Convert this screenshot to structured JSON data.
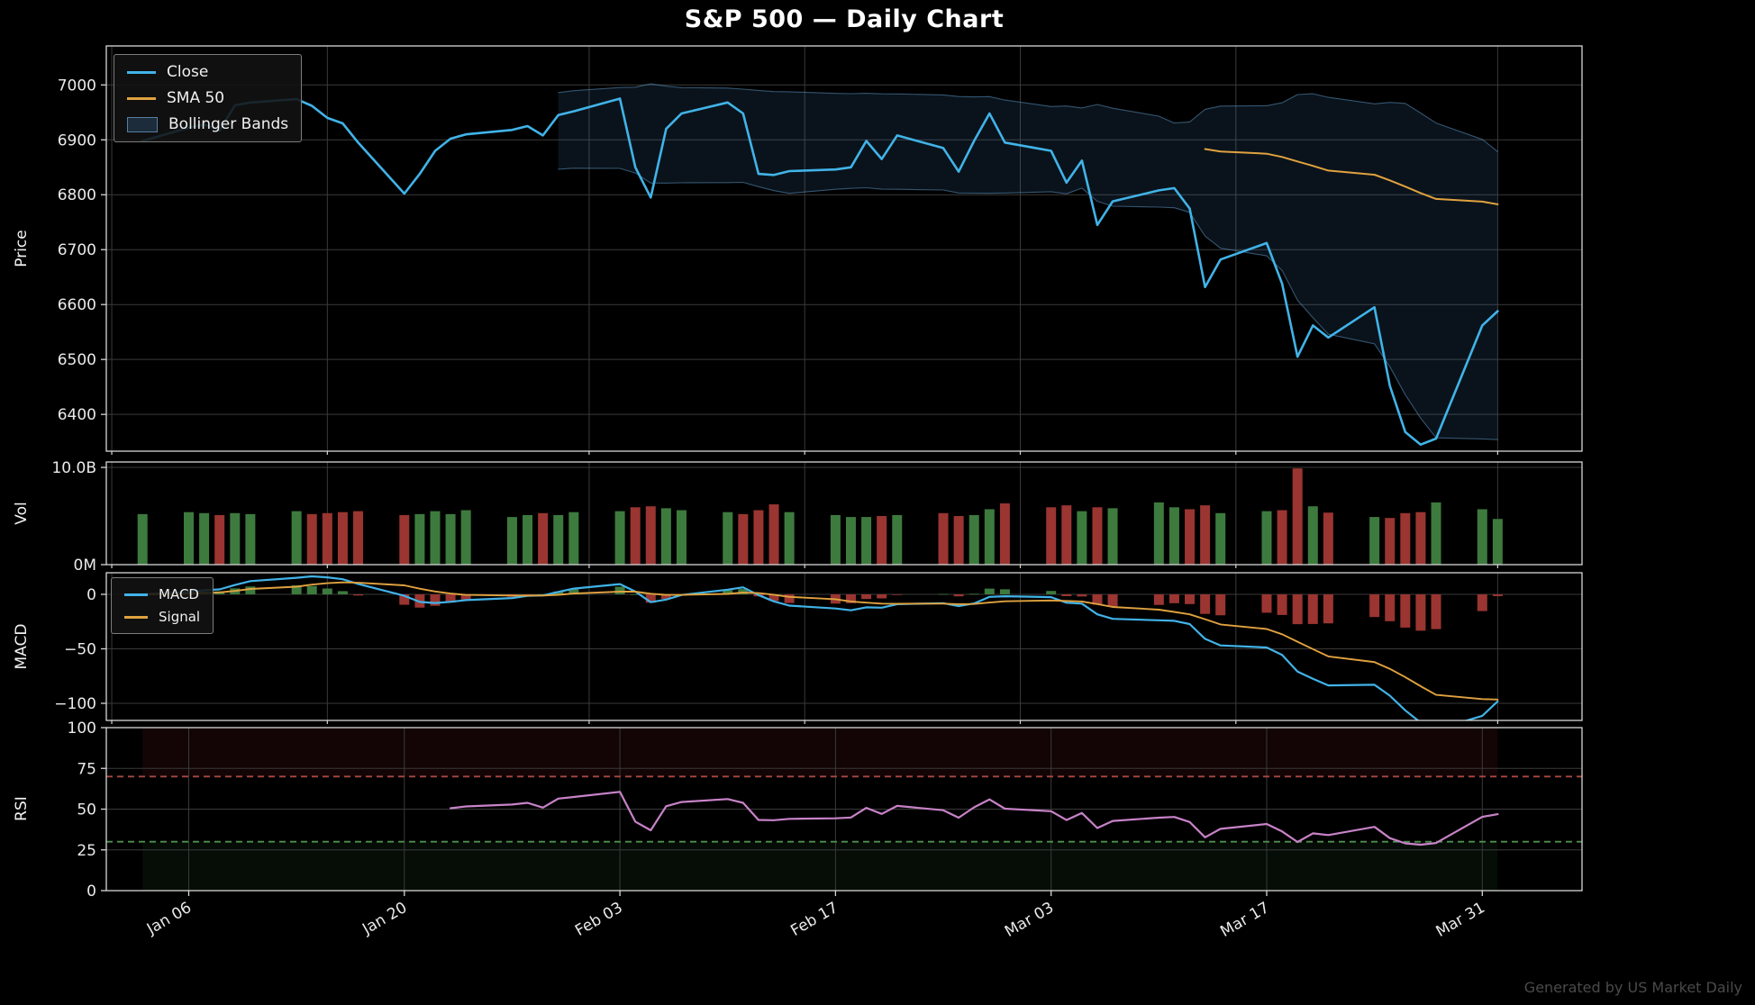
{
  "title": "S&P 500 — Daily Chart",
  "watermark": "Generated by US Market Daily",
  "price_legend": {
    "close": "Close",
    "sma": "SMA 50",
    "bb": "Bollinger Bands"
  },
  "macd_legend": {
    "macd": "MACD",
    "signal": "Signal"
  },
  "axis_labels": {
    "price": "Price",
    "volume": "Vol",
    "macd": "MACD",
    "rsi": "RSI"
  },
  "colors": {
    "background": "#000000",
    "close_line": "#41b3e8",
    "sma_line": "#e0a23f",
    "bb_fill": "rgba(70,130,180,0.15)",
    "bb_edge": "rgba(100,160,210,0.5)",
    "vol_up": "#3d7a3e",
    "vol_down": "#9a3531",
    "macd_line": "#41b3e8",
    "signal_line": "#e0a23f",
    "hist_up": "#3d7a3e",
    "hist_down": "#9a3531",
    "rsi_line": "#c883c8",
    "rsi_overbought_line": "#a84743",
    "rsi_oversold_line": "#4f8f4f",
    "overbought_fill": "rgba(150,40,40,0.13)",
    "oversold_fill": "rgba(50,130,60,0.10)",
    "grid": "#3a3a3a",
    "spine": "#d6d6d6",
    "tick_text": "#eaeaea"
  },
  "chart_data": {
    "type": "line",
    "title": "S&P 500 — Daily Chart",
    "panels": [
      "Price",
      "Vol",
      "MACD",
      "RSI"
    ],
    "legend_position": "upper left",
    "grid": true,
    "dates": [
      "2025-01-03",
      "2025-01-06",
      "2025-01-07",
      "2025-01-08",
      "2025-01-09",
      "2025-01-10",
      "2025-01-13",
      "2025-01-14",
      "2025-01-15",
      "2025-01-16",
      "2025-01-17",
      "2025-01-20",
      "2025-01-21",
      "2025-01-22",
      "2025-01-23",
      "2025-01-24",
      "2025-01-27",
      "2025-01-28",
      "2025-01-29",
      "2025-01-30",
      "2025-01-31",
      "2025-02-03",
      "2025-02-04",
      "2025-02-05",
      "2025-02-06",
      "2025-02-07",
      "2025-02-10",
      "2025-02-11",
      "2025-02-12",
      "2025-02-13",
      "2025-02-14",
      "2025-02-17",
      "2025-02-18",
      "2025-02-19",
      "2025-02-20",
      "2025-02-21",
      "2025-02-24",
      "2025-02-25",
      "2025-02-26",
      "2025-02-27",
      "2025-02-28",
      "2025-03-03",
      "2025-03-04",
      "2025-03-05",
      "2025-03-06",
      "2025-03-07",
      "2025-03-10",
      "2025-03-11",
      "2025-03-12",
      "2025-03-13",
      "2025-03-14",
      "2025-03-17",
      "2025-03-18",
      "2025-03-19",
      "2025-03-20",
      "2025-03-21",
      "2025-03-24",
      "2025-03-25",
      "2025-03-26",
      "2025-03-27",
      "2025-03-28",
      "2025-03-31",
      "2025-04-01"
    ],
    "close": [
      6898,
      6922,
      6928,
      6917,
      6963,
      6968,
      6974,
      6962,
      6940,
      6930,
      6895,
      6802,
      6838,
      6880,
      6902,
      6910,
      6918,
      6925,
      6908,
      6945,
      6952,
      6975,
      6850,
      6795,
      6920,
      6948,
      6968,
      6948,
      6838,
      6836,
      6843,
      6846,
      6850,
      6898,
      6865,
      6908,
      6885,
      6842,
      6898,
      6948,
      6895,
      6880,
      6822,
      6862,
      6745,
      6788,
      6808,
      6812,
      6775,
      6632,
      6682,
      6712,
      6638,
      6505,
      6562,
      6540,
      6595,
      6452,
      6368,
      6345,
      6356,
      6562,
      6588
    ],
    "volume_billions": [
      5.2,
      5.4,
      5.3,
      5.1,
      5.3,
      5.2,
      5.5,
      5.2,
      5.3,
      5.4,
      5.5,
      5.1,
      5.2,
      5.5,
      5.2,
      5.6,
      4.9,
      5.1,
      5.3,
      5.1,
      5.4,
      5.5,
      5.9,
      6.0,
      5.8,
      5.6,
      5.4,
      5.2,
      5.6,
      6.2,
      5.4,
      5.1,
      4.9,
      4.9,
      5.0,
      5.1,
      5.3,
      5.0,
      5.1,
      5.7,
      6.3,
      5.9,
      6.1,
      5.5,
      5.9,
      5.8,
      6.4,
      5.9,
      5.7,
      6.1,
      5.3,
      5.5,
      5.6,
      9.9,
      6.0,
      5.35,
      4.9,
      4.8,
      5.3,
      5.4,
      6.4,
      5.7,
      4.7
    ],
    "indicators": {
      "sma_period": 50,
      "bb_period": 20,
      "bb_std": 1.7,
      "macd_fast": 12,
      "macd_slow": 26,
      "macd_signal": 9,
      "rsi_period": 14,
      "rsi_overbought": 70,
      "rsi_oversold": 30
    },
    "x_ticks": [
      {
        "date": "2025-01-06",
        "label": "Jan 06"
      },
      {
        "date": "2025-01-20",
        "label": "Jan 20"
      },
      {
        "date": "2025-02-03",
        "label": "Feb 03"
      },
      {
        "date": "2025-02-17",
        "label": "Feb 17"
      },
      {
        "date": "2025-03-03",
        "label": "Mar 03"
      },
      {
        "date": "2025-03-17",
        "label": "Mar 17"
      },
      {
        "date": "2025-03-31",
        "label": "Mar 31"
      }
    ],
    "grid_dates": [
      "2025-01-01",
      "2025-01-15",
      "2025-02-01",
      "2025-02-15",
      "2025-03-01",
      "2025-03-15",
      "2025-04-01"
    ],
    "price_ticks": [
      7000,
      6900,
      6800,
      6700,
      6600,
      6500,
      6400
    ],
    "volume_ticks": [
      {
        "value": 10,
        "label": "10.0B"
      },
      {
        "value": 0,
        "label": "0M"
      }
    ],
    "macd_ticks": [
      {
        "value": 0,
        "label": "0"
      },
      {
        "value": -50,
        "label": "−50"
      },
      {
        "value": -100,
        "label": "−100"
      }
    ],
    "rsi_ticks": [
      100,
      75,
      50,
      25,
      0
    ],
    "ylim_price": [
      6333,
      7071
    ],
    "ylim_volume": [
      0,
      10.56
    ],
    "ylim_macd": [
      -115.7,
      19.8
    ],
    "ylim_rsi": [
      0,
      100
    ]
  }
}
